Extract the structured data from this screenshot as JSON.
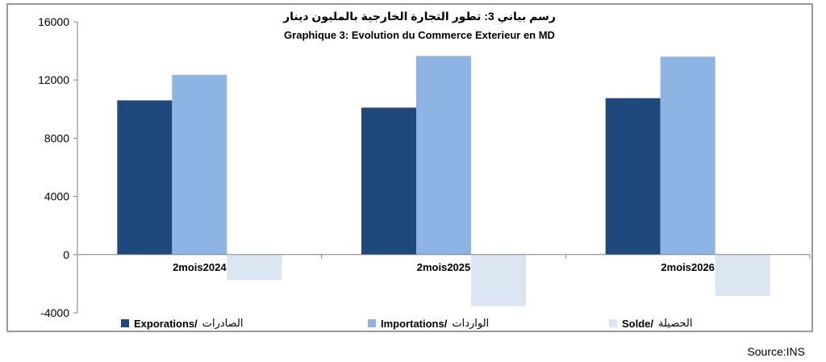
{
  "chart_data": {
    "type": "bar",
    "title_ar": "رسم بياني 3: تطور التجارة الخارجية بالمليون دينار",
    "title_fr": "Graphique 3: Evolution du Commerce Exterieur en MD",
    "categories": [
      "2mois2024",
      "2mois2025",
      "2mois2026"
    ],
    "series": [
      {
        "name": "Exporations/",
        "name_ar": "الصادرات",
        "color": "#1f497d",
        "values": [
          10600,
          10100,
          10750
        ]
      },
      {
        "name": "Importations/",
        "name_ar": "الواردات",
        "color": "#8eb4e3",
        "values": [
          12350,
          13650,
          13600
        ]
      },
      {
        "name": "Solde/",
        "name_ar": "الحصيلة",
        "color": "#dce6f2",
        "values": [
          -1750,
          -3550,
          -2850
        ]
      }
    ],
    "ylim": [
      -4000,
      16000
    ],
    "yticks": [
      -4000,
      0,
      4000,
      8000,
      12000,
      16000
    ],
    "grid": false,
    "legend_position": "bottom"
  },
  "source": "Source:INS"
}
